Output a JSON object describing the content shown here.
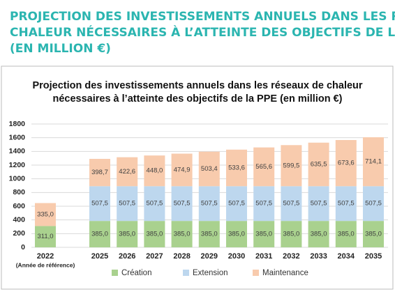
{
  "chart_data": {
    "type": "stacked_bar",
    "heading": [
      "PROJECTION DES INVESTISSEMENTS ANNUELS DANS LES RÉSEAUX DE",
      "CHALEUR NÉCESSAIRES À L’ATTEINTE DES OBJECTIFS DE LA PPE",
      "(EN MILLION €)"
    ],
    "title": [
      "Projection des investissements annuels dans les réseaux de chaleur",
      "nécessaires à l’atteinte des objectifs de la PPE (en million €)"
    ],
    "annotation": "(Année de référence)",
    "categories": [
      "2022",
      "2025",
      "2026",
      "2027",
      "2028",
      "2029",
      "2030",
      "2031",
      "2032",
      "2033",
      "2034",
      "2035"
    ],
    "series": [
      {
        "name": "Création",
        "color": "#a9d18e",
        "values": [
          311.0,
          385.0,
          385.0,
          385.0,
          385.0,
          385.0,
          385.0,
          385.0,
          385.0,
          385.0,
          385.0,
          385.0
        ],
        "value_labels": [
          "311,0",
          "385,0",
          "385,0",
          "385,0",
          "385,0",
          "385,0",
          "385,0",
          "385,0",
          "385,0",
          "385,0",
          "385,0",
          "385,0"
        ]
      },
      {
        "name": "Extension",
        "color": "#bdd7ee",
        "values": [
          null,
          507.5,
          507.5,
          507.5,
          507.5,
          507.5,
          507.5,
          507.5,
          507.5,
          507.5,
          507.5,
          507.5
        ],
        "value_labels": [
          null,
          "507,5",
          "507,5",
          "507,5",
          "507,5",
          "507,5",
          "507,5",
          "507,5",
          "507,5",
          "507,5",
          "507,5",
          "507,5"
        ]
      },
      {
        "name": "Maintenance",
        "color": "#f8cbad",
        "values": [
          335.0,
          398.7,
          422.6,
          448.0,
          474.9,
          503.4,
          533.6,
          565.6,
          599.5,
          635.5,
          673.6,
          714.1
        ],
        "value_labels": [
          "335,0",
          "398,7",
          "422,6",
          "448,0",
          "474,9",
          "503,4",
          "533,6",
          "565,6",
          "599,5",
          "635,5",
          "673,6",
          "714,1"
        ]
      }
    ],
    "ylim": [
      0,
      1800
    ],
    "yticks": [
      0,
      200,
      400,
      600,
      800,
      1000,
      1200,
      1400,
      1600,
      1800
    ],
    "grid": true
  }
}
